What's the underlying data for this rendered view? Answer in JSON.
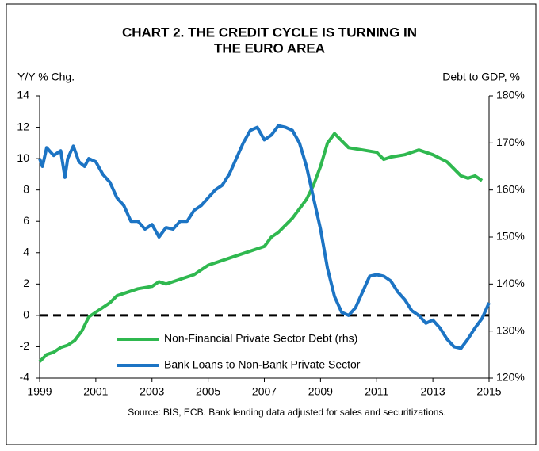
{
  "chart_data": {
    "type": "line",
    "title": [
      "CHART 2. THE CREDIT CYCLE IS TURNING IN",
      "THE EURO AREA"
    ],
    "ylabel": "Y/Y % Chg.",
    "y2label": "Debt to GDP, %",
    "source": "Source: BIS, ECB.  Bank lending data adjusted for sales and securitizations.",
    "xlim": [
      1999,
      2015
    ],
    "xticks": [
      1999,
      2001,
      2003,
      2005,
      2007,
      2009,
      2011,
      2013,
      2015
    ],
    "ylim": [
      -4,
      14
    ],
    "yticks": [
      -4,
      -2,
      0,
      2,
      4,
      6,
      8,
      10,
      12,
      14
    ],
    "y2lim": [
      120,
      180
    ],
    "y2ticks": [
      {
        "value": 120,
        "label": "120%"
      },
      {
        "value": 130,
        "label": "130%"
      },
      {
        "value": 140,
        "label": "140%"
      },
      {
        "value": 150,
        "label": "150%"
      },
      {
        "value": 160,
        "label": "160%"
      },
      {
        "value": 170,
        "label": "170%"
      },
      {
        "value": 180,
        "label": "180%"
      }
    ],
    "hline": 0,
    "legend": "lower-center",
    "series": [
      {
        "name": "Non-Financial Private Sector Debt (rhs)",
        "color": "#2fb84f",
        "axis": "y2",
        "x": [
          1999.0,
          1999.25,
          1999.5,
          1999.75,
          2000.0,
          2000.25,
          2000.5,
          2000.75,
          2001.0,
          2001.25,
          2001.5,
          2001.75,
          2002.0,
          2002.5,
          2003.0,
          2003.25,
          2003.5,
          2003.75,
          2004.0,
          2004.5,
          2005.0,
          2005.5,
          2006.0,
          2006.5,
          2007.0,
          2007.25,
          2007.5,
          2008.0,
          2008.5,
          2008.75,
          2009.0,
          2009.25,
          2009.5,
          2009.75,
          2010.0,
          2010.5,
          2011.0,
          2011.25,
          2011.5,
          2012.0,
          2012.5,
          2013.0,
          2013.5,
          2014.0,
          2014.25,
          2014.5,
          2014.75
        ],
        "values": [
          123.5,
          125,
          125.5,
          126.5,
          127,
          128,
          130,
          133,
          134,
          135,
          136,
          137.5,
          138,
          139,
          139.5,
          140.5,
          140,
          140.5,
          141,
          142,
          144,
          145,
          146,
          147,
          148,
          150,
          151,
          154,
          158,
          161,
          165,
          170,
          172,
          170.5,
          169,
          168.5,
          168,
          166.5,
          167,
          167.5,
          168.5,
          167.5,
          166,
          163,
          162.5,
          163,
          162
        ]
      },
      {
        "name": "Bank Loans to Non-Bank Private Sector",
        "color": "#1c74c4",
        "x": [
          1999.0,
          1999.1,
          1999.25,
          1999.5,
          1999.75,
          1999.9,
          2000.0,
          2000.2,
          2000.4,
          2000.6,
          2000.75,
          2001.0,
          2001.25,
          2001.5,
          2001.75,
          2002.0,
          2002.25,
          2002.5,
          2002.75,
          2003.0,
          2003.25,
          2003.5,
          2003.75,
          2004.0,
          2004.25,
          2004.5,
          2004.75,
          2005.0,
          2005.25,
          2005.5,
          2005.75,
          2006.0,
          2006.25,
          2006.5,
          2006.75,
          2007.0,
          2007.25,
          2007.5,
          2007.75,
          2008.0,
          2008.25,
          2008.5,
          2008.75,
          2009.0,
          2009.25,
          2009.5,
          2009.75,
          2010.0,
          2010.25,
          2010.5,
          2010.75,
          2011.0,
          2011.25,
          2011.5,
          2011.75,
          2012.0,
          2012.25,
          2012.5,
          2012.75,
          2013.0,
          2013.25,
          2013.5,
          2013.75,
          2014.0,
          2014.25,
          2014.5,
          2014.75,
          2015.0
        ],
        "values": [
          10,
          9.5,
          10.7,
          10.2,
          10.5,
          8.8,
          10,
          10.8,
          9.8,
          9.5,
          10,
          9.8,
          9,
          8.5,
          7.5,
          7,
          6,
          6,
          5.5,
          5.8,
          5,
          5.6,
          5.5,
          6,
          6,
          6.7,
          7,
          7.5,
          8,
          8.3,
          9,
          10,
          11,
          11.8,
          12,
          11.2,
          11.5,
          12.1,
          12,
          11.8,
          11,
          9.5,
          7.5,
          5.5,
          3,
          1.2,
          0.2,
          0,
          0.5,
          1.5,
          2.5,
          2.6,
          2.5,
          2.2,
          1.5,
          1,
          0.3,
          0,
          -0.5,
          -0.3,
          -0.8,
          -1.5,
          -2,
          -2.1,
          -1.5,
          -0.8,
          -0.2,
          0.8
        ]
      }
    ]
  }
}
